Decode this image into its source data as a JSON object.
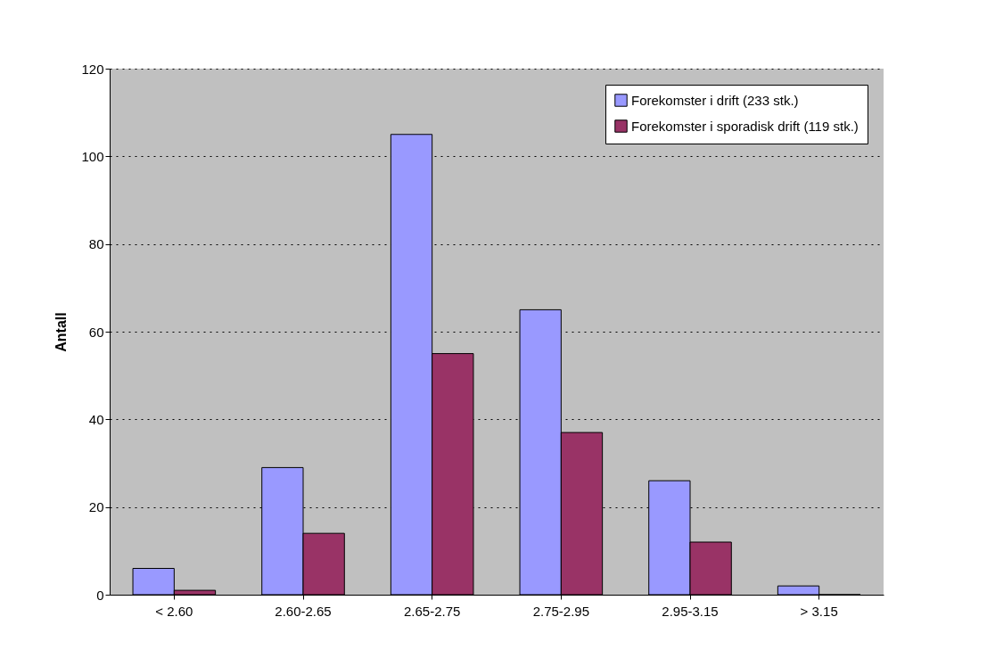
{
  "chart_data": {
    "type": "bar",
    "ylabel": "Antall",
    "categories": [
      "< 2.60",
      "2.60-2.65",
      "2.65-2.75",
      "2.75-2.95",
      "2.95-3.15",
      "> 3.15"
    ],
    "series": [
      {
        "name": "Forekomster i drift (233 stk.)",
        "color": "#9999ff",
        "values": [
          6,
          29,
          105,
          65,
          26,
          2
        ]
      },
      {
        "name": "Forekomster i sporadisk drift (119 stk.)",
        "color": "#993366",
        "values": [
          1,
          14,
          55,
          37,
          12,
          0
        ]
      }
    ],
    "ylim": [
      0,
      120
    ],
    "yticks": [
      0,
      20,
      40,
      60,
      80,
      100,
      120
    ],
    "grid": "y",
    "legend": "top right"
  }
}
